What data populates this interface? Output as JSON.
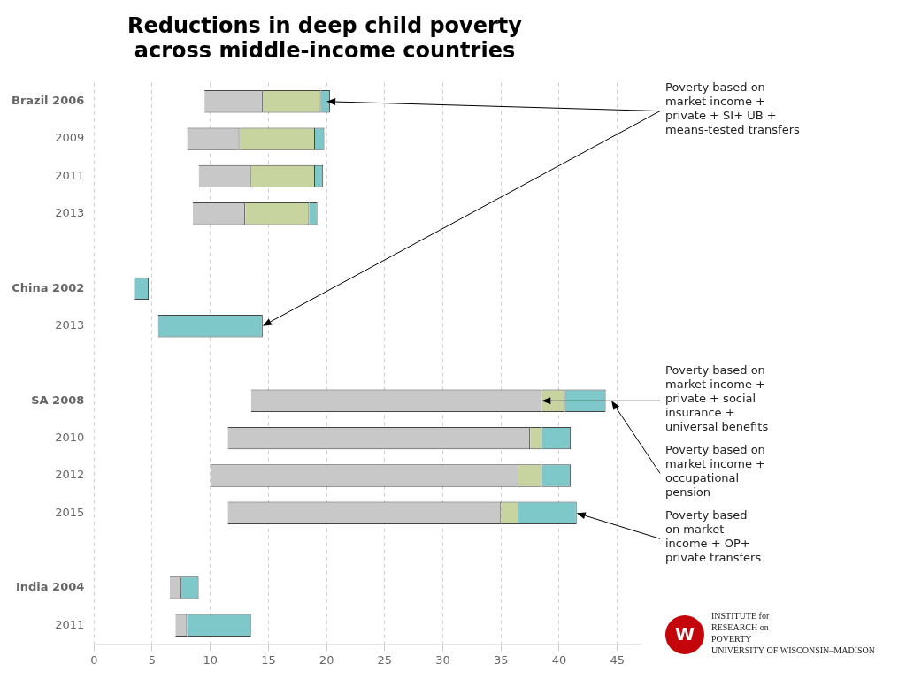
{
  "chart_data": {
    "type": "bar",
    "orientation": "horizontal",
    "stacked": true,
    "grid": true,
    "title": "Reductions in deep child poverty\nacross middle-income countries",
    "categories": [
      "Brazil 2006",
      "2009",
      "2011",
      "2013",
      null,
      "China 2002",
      "2013",
      null,
      "SA 2008",
      "2010",
      "2012",
      "2015",
      null,
      "India 2004",
      "2011"
    ],
    "starts": [
      9.5,
      8.0,
      9.0,
      8.5,
      null,
      3.5,
      5.5,
      null,
      13.5,
      11.5,
      10.0,
      11.5,
      null,
      6.5,
      7.0
    ],
    "series": [
      {
        "color": "#c8c8c8",
        "values": [
          5.0,
          4.5,
          4.5,
          4.5,
          null,
          null,
          null,
          null,
          25.0,
          26.0,
          26.5,
          23.5,
          null,
          1.0,
          1.0
        ]
      },
      {
        "color": "#c8d4a0",
        "values": [
          5.0,
          6.5,
          5.5,
          5.5,
          null,
          null,
          null,
          null,
          2.0,
          1.0,
          2.0,
          1.5,
          null,
          null,
          null
        ]
      },
      {
        "color": "#7ec8ca",
        "values": [
          0.8,
          0.8,
          0.7,
          0.7,
          null,
          1.2,
          9.0,
          null,
          3.5,
          2.5,
          2.5,
          5.0,
          null,
          1.5,
          5.5
        ]
      }
    ],
    "xlim": [
      0,
      47
    ],
    "xticks": [
      0,
      5,
      10,
      15,
      20,
      25,
      30,
      35,
      40,
      45
    ],
    "annotations": [
      {
        "text": "Poverty based on\nmarket income +\nprivate + SI+ UB +\nmeans-tested transfers",
        "arrows": [
          {
            "x": 20.0,
            "row": 0
          },
          {
            "x": 14.5,
            "row": 6
          }
        ]
      },
      {
        "text": "Poverty based on\nmarket income +\nprivate + social\ninsurance +\nuniversal benefits",
        "arrows": [
          {
            "x": 38.5,
            "row": 8
          }
        ]
      },
      {
        "text": "Poverty based on\nmarket income +\noccupational\npension",
        "arrows": [
          {
            "x": 44.5,
            "row": 8
          }
        ]
      },
      {
        "text": "Poverty based\non market\nincome + OP+\nprivate transfers",
        "arrows": [
          {
            "x": 41.5,
            "row": 11
          }
        ]
      }
    ],
    "logo": {
      "mark": "W",
      "text": "INSTITUTE for\nRESEARCH on\nPOVERTY\nUNIVERSITY OF WISCONSIN–MADISON",
      "color": "#c5050c"
    }
  }
}
